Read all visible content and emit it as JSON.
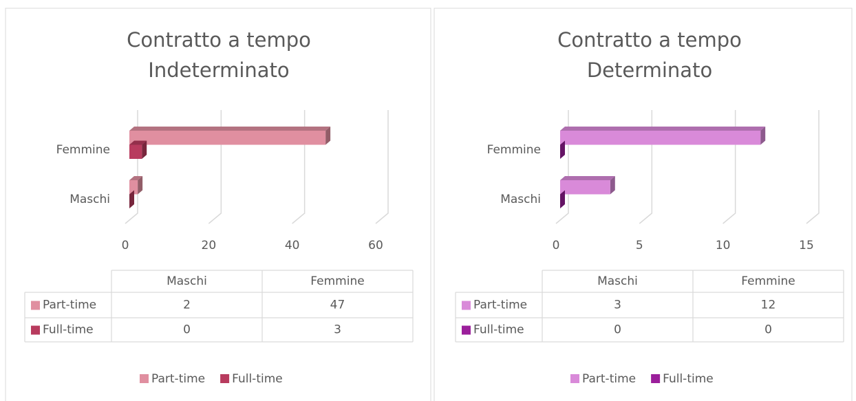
{
  "chart_data": [
    {
      "type": "bar3d",
      "title": [
        "Contratto a tempo",
        "Indeterminato"
      ],
      "categories": [
        "Maschi",
        "Femmine"
      ],
      "series": [
        {
          "name": "Part-time",
          "color": "#e08fa0",
          "values": [
            2,
            47
          ]
        },
        {
          "name": "Full-time",
          "color": "#b83b5e",
          "values": [
            0,
            3
          ]
        }
      ],
      "xlim": [
        0,
        60
      ],
      "xticks": [
        0,
        20,
        40,
        60
      ],
      "grid": true,
      "legend": "bottom"
    },
    {
      "type": "bar3d",
      "title": [
        "Contratto a tempo",
        "Determinato"
      ],
      "categories": [
        "Maschi",
        "Femmine"
      ],
      "series": [
        {
          "name": "Part-time",
          "color": "#d98ad9",
          "values": [
            3,
            12
          ]
        },
        {
          "name": "Full-time",
          "color": "#9b1f9b",
          "values": [
            0,
            0
          ]
        }
      ],
      "xlim": [
        0,
        15
      ],
      "xticks": [
        0,
        5,
        10,
        15
      ],
      "grid": true,
      "legend": "bottom"
    }
  ]
}
